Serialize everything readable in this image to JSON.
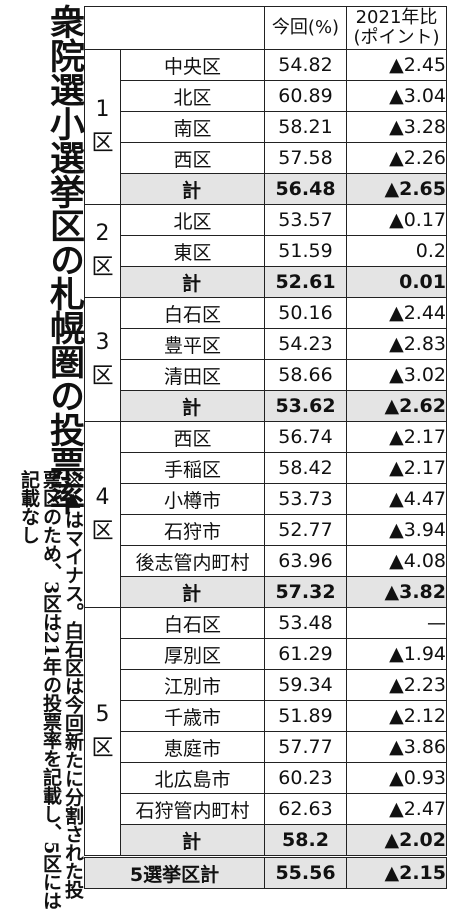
{
  "title": "衆院選小選挙区の札幌圏の投票率",
  "note": "※▲はマイナス。白石区は今回新たに分割された投票区のため、3区は21年の投票率を記載し、5区には記載なし",
  "header": {
    "current": "今回(%)",
    "diff_line1": "2021年比",
    "diff_line2": "(ポイント)"
  },
  "districts": [
    {
      "name": "1\n区",
      "rows": [
        {
          "area": "中央区",
          "rate": "54.82",
          "diff": "▲2.45"
        },
        {
          "area": "北区",
          "rate": "60.89",
          "diff": "▲3.04"
        },
        {
          "area": "南区",
          "rate": "58.21",
          "diff": "▲3.28"
        },
        {
          "area": "西区",
          "rate": "57.58",
          "diff": "▲2.26"
        }
      ],
      "subtotal": {
        "area": "計",
        "rate": "56.48",
        "diff": "▲2.65"
      }
    },
    {
      "name": "2\n区",
      "rows": [
        {
          "area": "北区",
          "rate": "53.57",
          "diff": "▲0.17"
        },
        {
          "area": "東区",
          "rate": "51.59",
          "diff": "0.2"
        }
      ],
      "subtotal": {
        "area": "計",
        "rate": "52.61",
        "diff": "0.01"
      }
    },
    {
      "name": "3\n区",
      "rows": [
        {
          "area": "白石区",
          "rate": "50.16",
          "diff": "▲2.44"
        },
        {
          "area": "豊平区",
          "rate": "54.23",
          "diff": "▲2.83"
        },
        {
          "area": "清田区",
          "rate": "58.66",
          "diff": "▲3.02"
        }
      ],
      "subtotal": {
        "area": "計",
        "rate": "53.62",
        "diff": "▲2.62"
      }
    },
    {
      "name": "4\n区",
      "rows": [
        {
          "area": "西区",
          "rate": "56.74",
          "diff": "▲2.17"
        },
        {
          "area": "手稲区",
          "rate": "58.42",
          "diff": "▲2.17"
        },
        {
          "area": "小樽市",
          "rate": "53.73",
          "diff": "▲4.47"
        },
        {
          "area": "石狩市",
          "rate": "52.77",
          "diff": "▲3.94"
        },
        {
          "area": "後志管内町村",
          "rate": "63.96",
          "diff": "▲4.08"
        }
      ],
      "subtotal": {
        "area": "計",
        "rate": "57.32",
        "diff": "▲3.82"
      }
    },
    {
      "name": "5\n区",
      "rows": [
        {
          "area": "白石区",
          "rate": "53.48",
          "diff": "—"
        },
        {
          "area": "厚別区",
          "rate": "61.29",
          "diff": "▲1.94"
        },
        {
          "area": "江別市",
          "rate": "59.34",
          "diff": "▲2.23"
        },
        {
          "area": "千歳市",
          "rate": "51.89",
          "diff": "▲2.12"
        },
        {
          "area": "恵庭市",
          "rate": "57.77",
          "diff": "▲3.86"
        },
        {
          "area": "北広島市",
          "rate": "60.23",
          "diff": "▲0.93"
        },
        {
          "area": "石狩管内町村",
          "rate": "62.63",
          "diff": "▲2.47"
        }
      ],
      "subtotal": {
        "area": "計",
        "rate": "58.2",
        "diff": "▲2.02"
      }
    }
  ],
  "total": {
    "label": "5選挙区計",
    "rate": "55.56",
    "diff": "▲2.15"
  }
}
